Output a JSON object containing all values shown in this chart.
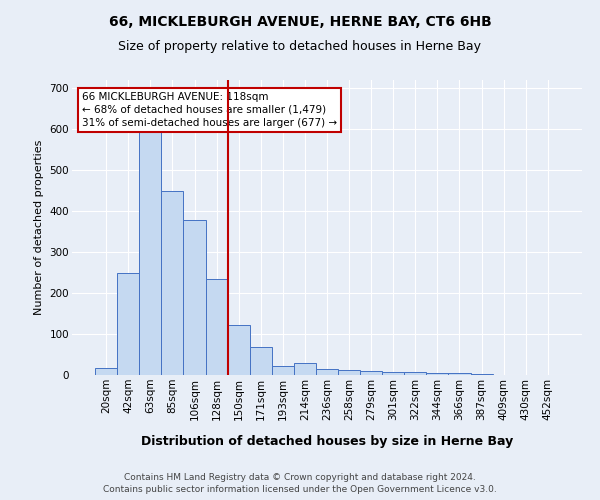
{
  "title": "66, MICKLEBURGH AVENUE, HERNE BAY, CT6 6HB",
  "subtitle": "Size of property relative to detached houses in Herne Bay",
  "xlabel": "Distribution of detached houses by size in Herne Bay",
  "ylabel": "Number of detached properties",
  "categories": [
    "20sqm",
    "42sqm",
    "63sqm",
    "85sqm",
    "106sqm",
    "128sqm",
    "150sqm",
    "171sqm",
    "193sqm",
    "214sqm",
    "236sqm",
    "258sqm",
    "279sqm",
    "301sqm",
    "322sqm",
    "344sqm",
    "366sqm",
    "387sqm",
    "409sqm",
    "430sqm",
    "452sqm"
  ],
  "values": [
    17,
    248,
    608,
    450,
    378,
    235,
    121,
    68,
    22,
    30,
    14,
    13,
    10,
    8,
    7,
    6,
    5,
    3,
    0,
    0,
    0
  ],
  "bar_color": "#c5d9f1",
  "bar_edge_color": "#4472c4",
  "vline_x": 5.5,
  "vline_color": "#c00000",
  "annotation_text": "66 MICKLEBURGH AVENUE: 118sqm\n← 68% of detached houses are smaller (1,479)\n31% of semi-detached houses are larger (677) →",
  "annotation_box_color": "#ffffff",
  "annotation_box_edge": "#c00000",
  "footnote1": "Contains HM Land Registry data © Crown copyright and database right 2024.",
  "footnote2": "Contains public sector information licensed under the Open Government Licence v3.0.",
  "background_color": "#e8eef7",
  "plot_background": "#e8eef7",
  "grid_color": "#ffffff",
  "ylim": [
    0,
    720
  ],
  "yticks": [
    0,
    100,
    200,
    300,
    400,
    500,
    600,
    700
  ],
  "title_fontsize": 10,
  "subtitle_fontsize": 9,
  "xlabel_fontsize": 9,
  "ylabel_fontsize": 8,
  "tick_fontsize": 7.5,
  "annotation_fontsize": 7.5,
  "footnote_fontsize": 6.5
}
